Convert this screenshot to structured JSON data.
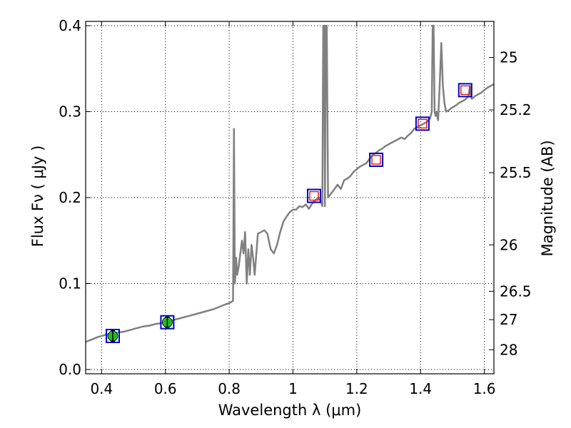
{
  "chart_data": {
    "type": "line",
    "xlabel": "Wavelength  λ (μm)",
    "ylabel": "Flux  Fν ( μJy )",
    "y2label": "Magnitude (AB)",
    "xlim": [
      0.35,
      1.63
    ],
    "ylim": [
      -0.005,
      0.405
    ],
    "grid": true,
    "x_ticks": [
      0.4,
      0.6,
      0.8,
      1.0,
      1.2,
      1.4,
      1.6
    ],
    "x_tick_labels": [
      "0.4",
      "0.6",
      "0.8",
      "1",
      "1.2",
      "1.4",
      "1.6"
    ],
    "y_ticks": [
      0.0,
      0.1,
      0.2,
      0.3,
      0.4
    ],
    "y_tick_labels": [
      "0.0",
      "0.1",
      "0.2",
      "0.3",
      "0.4"
    ],
    "y2_ticks": [
      {
        "flux": 0.363,
        "label": "25"
      },
      {
        "flux": 0.302,
        "label": "25.2"
      },
      {
        "flux": 0.229,
        "label": "25.5"
      },
      {
        "flux": 0.145,
        "label": "26"
      },
      {
        "flux": 0.091,
        "label": "26.5"
      },
      {
        "flux": 0.058,
        "label": "27"
      },
      {
        "flux": 0.023,
        "label": "28"
      }
    ],
    "series": [
      {
        "kind": "spectrum",
        "color": "#808080",
        "x": [
          0.35,
          0.37,
          0.39,
          0.41,
          0.43,
          0.45,
          0.47,
          0.49,
          0.51,
          0.53,
          0.55,
          0.57,
          0.59,
          0.61,
          0.63,
          0.65,
          0.67,
          0.69,
          0.71,
          0.73,
          0.75,
          0.77,
          0.79,
          0.805,
          0.812,
          0.815,
          0.818,
          0.822,
          0.825,
          0.83,
          0.84,
          0.845,
          0.85,
          0.855,
          0.86,
          0.865,
          0.87,
          0.875,
          0.88,
          0.89,
          0.9,
          0.91,
          0.92,
          0.93,
          0.94,
          0.95,
          0.96,
          0.97,
          0.98,
          0.99,
          1.0,
          1.01,
          1.02,
          1.03,
          1.04,
          1.05,
          1.06,
          1.07,
          1.08,
          1.088,
          1.092,
          1.095,
          1.098,
          1.1,
          1.103,
          1.106,
          1.11,
          1.12,
          1.13,
          1.14,
          1.15,
          1.16,
          1.17,
          1.18,
          1.19,
          1.2,
          1.21,
          1.22,
          1.23,
          1.24,
          1.25,
          1.26,
          1.27,
          1.28,
          1.29,
          1.3,
          1.31,
          1.32,
          1.33,
          1.34,
          1.35,
          1.36,
          1.37,
          1.38,
          1.39,
          1.4,
          1.41,
          1.42,
          1.43,
          1.435,
          1.438,
          1.441,
          1.444,
          1.447,
          1.45,
          1.455,
          1.46,
          1.465,
          1.47,
          1.475,
          1.48,
          1.49,
          1.5,
          1.51,
          1.52,
          1.53,
          1.54,
          1.55,
          1.555,
          1.56,
          1.565,
          1.57,
          1.58,
          1.59,
          1.6,
          1.61,
          1.62,
          1.63
        ],
        "y": [
          0.032,
          0.035,
          0.038,
          0.04,
          0.042,
          0.043,
          0.044,
          0.046,
          0.048,
          0.05,
          0.051,
          0.053,
          0.054,
          0.056,
          0.058,
          0.06,
          0.062,
          0.064,
          0.066,
          0.068,
          0.07,
          0.073,
          0.076,
          0.078,
          0.08,
          0.28,
          0.1,
          0.13,
          0.11,
          0.12,
          0.15,
          0.135,
          0.16,
          0.1,
          0.14,
          0.11,
          0.145,
          0.13,
          0.11,
          0.158,
          0.16,
          0.162,
          0.158,
          0.14,
          0.135,
          0.145,
          0.16,
          0.172,
          0.178,
          0.183,
          0.186,
          0.186,
          0.19,
          0.189,
          0.192,
          0.187,
          0.193,
          0.197,
          0.2,
          0.195,
          0.19,
          0.4,
          0.4,
          0.19,
          0.4,
          0.4,
          0.2,
          0.205,
          0.21,
          0.215,
          0.21,
          0.22,
          0.222,
          0.225,
          0.23,
          0.233,
          0.236,
          0.238,
          0.24,
          0.245,
          0.25,
          0.252,
          0.255,
          0.257,
          0.26,
          0.262,
          0.264,
          0.266,
          0.268,
          0.27,
          0.268,
          0.272,
          0.275,
          0.28,
          0.282,
          0.284,
          0.286,
          0.288,
          0.292,
          0.3,
          0.4,
          0.4,
          0.3,
          0.295,
          0.3,
          0.29,
          0.33,
          0.38,
          0.33,
          0.31,
          0.3,
          0.302,
          0.305,
          0.307,
          0.31,
          0.312,
          0.314,
          0.318,
          0.33,
          0.315,
          0.316,
          0.318,
          0.32,
          0.322,
          0.325,
          0.328,
          0.33,
          0.332
        ]
      },
      {
        "kind": "photometry_model",
        "marker": "blue-square",
        "color": "#0000cc",
        "x": [
          0.435,
          0.606,
          1.066,
          1.261,
          1.406,
          1.54
        ],
        "y": [
          0.039,
          0.055,
          0.202,
          0.244,
          0.286,
          0.325
        ]
      },
      {
        "kind": "photometry_observed",
        "marker": "green-circle",
        "color": "#22bb22",
        "x": [
          0.435,
          0.606
        ],
        "y": [
          0.039,
          0.055
        ],
        "yerr": [
          0.006,
          0.006
        ]
      },
      {
        "kind": "photometry_upper",
        "marker": "red-square",
        "color": "#dd2222",
        "x": [
          1.066,
          1.261,
          1.406,
          1.54
        ],
        "y": [
          0.202,
          0.244,
          0.286,
          0.325
        ]
      }
    ]
  }
}
